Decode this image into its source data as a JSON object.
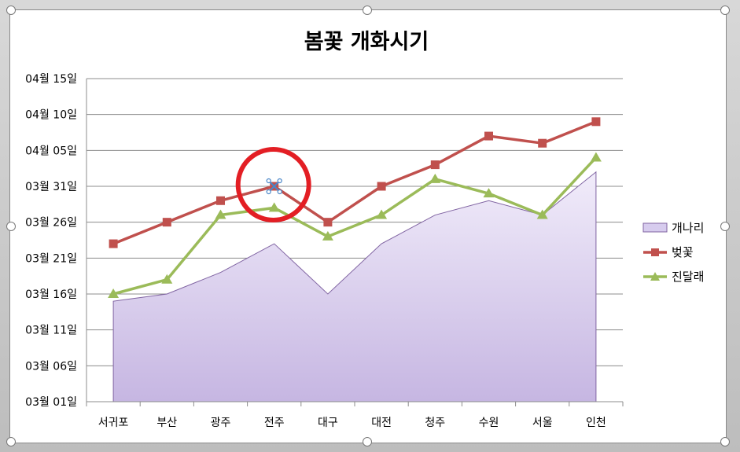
{
  "chart_data": {
    "type": "line",
    "title": "봄꽃 개화시기",
    "categories": [
      "서귀포",
      "부산",
      "광주",
      "전주",
      "대구",
      "대전",
      "청주",
      "수원",
      "서울",
      "인천"
    ],
    "y_tick_labels": [
      "03월 01일",
      "03월 06일",
      "03월 11일",
      "03월 16일",
      "03월 21일",
      "03월 26일",
      "03월 31일",
      "04월 05일",
      "04월 10일",
      "04월 15일"
    ],
    "y_unit": "days since 03월 01일",
    "ylim": [
      0,
      45
    ],
    "ystep": 5,
    "grid": true,
    "legend_position": "right",
    "series": [
      {
        "name": "개나리",
        "kind": "area",
        "color": "#b7a6db",
        "values": [
          14,
          15,
          18,
          22,
          15,
          22,
          26,
          28,
          26,
          32
        ]
      },
      {
        "name": "벚꽃",
        "kind": "line",
        "marker": "square",
        "color": "#c0504d",
        "values": [
          22,
          25,
          28,
          30,
          25,
          30,
          33,
          37,
          36,
          39
        ]
      },
      {
        "name": "진달래",
        "kind": "line",
        "marker": "triangle",
        "color": "#9bbb59",
        "values": [
          15,
          17,
          26,
          27,
          23,
          26,
          31,
          29,
          26,
          34
        ]
      }
    ],
    "annotation": {
      "shape": "circle",
      "color": "#e31e24",
      "category": "전주",
      "series": "벚꽃"
    }
  }
}
